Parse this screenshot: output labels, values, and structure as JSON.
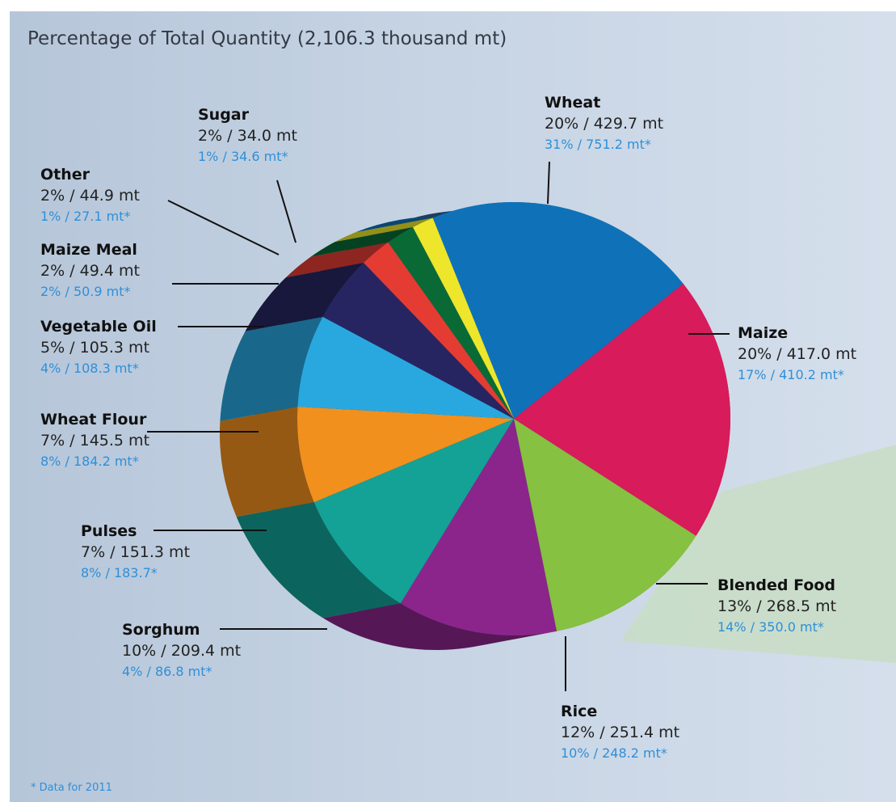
{
  "chart_data": {
    "type": "pie",
    "title": "Percentage of Total Quantity (2,106.3 thousand mt)",
    "footnote": "* Data for 2011",
    "slices": [
      {
        "name": "Wheat",
        "percent": 20,
        "value": 429.7,
        "current_text": "20% / 429.7 mt",
        "previous_text": "31% / 751.2 mt*",
        "color": "#0f72b8"
      },
      {
        "name": "Maize",
        "percent": 20,
        "value": 417.0,
        "current_text": "20% / 417.0 mt",
        "previous_text": "17% / 410.2 mt*",
        "color": "#d81b5a"
      },
      {
        "name": "Blended Food",
        "percent": 13,
        "value": 268.5,
        "current_text": "13% / 268.5 mt",
        "previous_text": "14% / 350.0 mt*",
        "color": "#86c141"
      },
      {
        "name": "Rice",
        "percent": 12,
        "value": 251.4,
        "current_text": "12% / 251.4 mt",
        "previous_text": "10% / 248.2 mt*",
        "color": "#8b258b"
      },
      {
        "name": "Sorghum",
        "percent": 10,
        "value": 209.4,
        "current_text": "10% / 209.4 mt",
        "previous_text": "4% / 86.8 mt*",
        "color": "#14a297"
      },
      {
        "name": "Pulses",
        "percent": 7,
        "value": 151.3,
        "current_text": "7% / 151.3 mt",
        "previous_text": "8% / 183.7*",
        "color": "#f2901e"
      },
      {
        "name": "Wheat Flour",
        "percent": 7,
        "value": 145.5,
        "current_text": "7% / 145.5 mt",
        "previous_text": "8% / 184.2 mt*",
        "color": "#29a8e0"
      },
      {
        "name": "Vegetable Oil",
        "percent": 5,
        "value": 105.3,
        "current_text": "5% / 105.3 mt",
        "previous_text": "4% / 108.3 mt*",
        "color": "#272561"
      },
      {
        "name": "Maize Meal",
        "percent": 2,
        "value": 49.4,
        "current_text": "2% / 49.4 mt",
        "previous_text": "2% / 50.9 mt*",
        "color": "#e43c33"
      },
      {
        "name": "Other",
        "percent": 2,
        "value": 44.9,
        "current_text": "2% / 44.9 mt",
        "previous_text": "1% / 27.1 mt*",
        "color": "#0a6a36"
      },
      {
        "name": "Sugar",
        "percent": 2,
        "value": 34.0,
        "current_text": "2% / 34.0 mt",
        "previous_text": "1% / 34.6 mt*",
        "color": "#ede62b"
      }
    ]
  }
}
